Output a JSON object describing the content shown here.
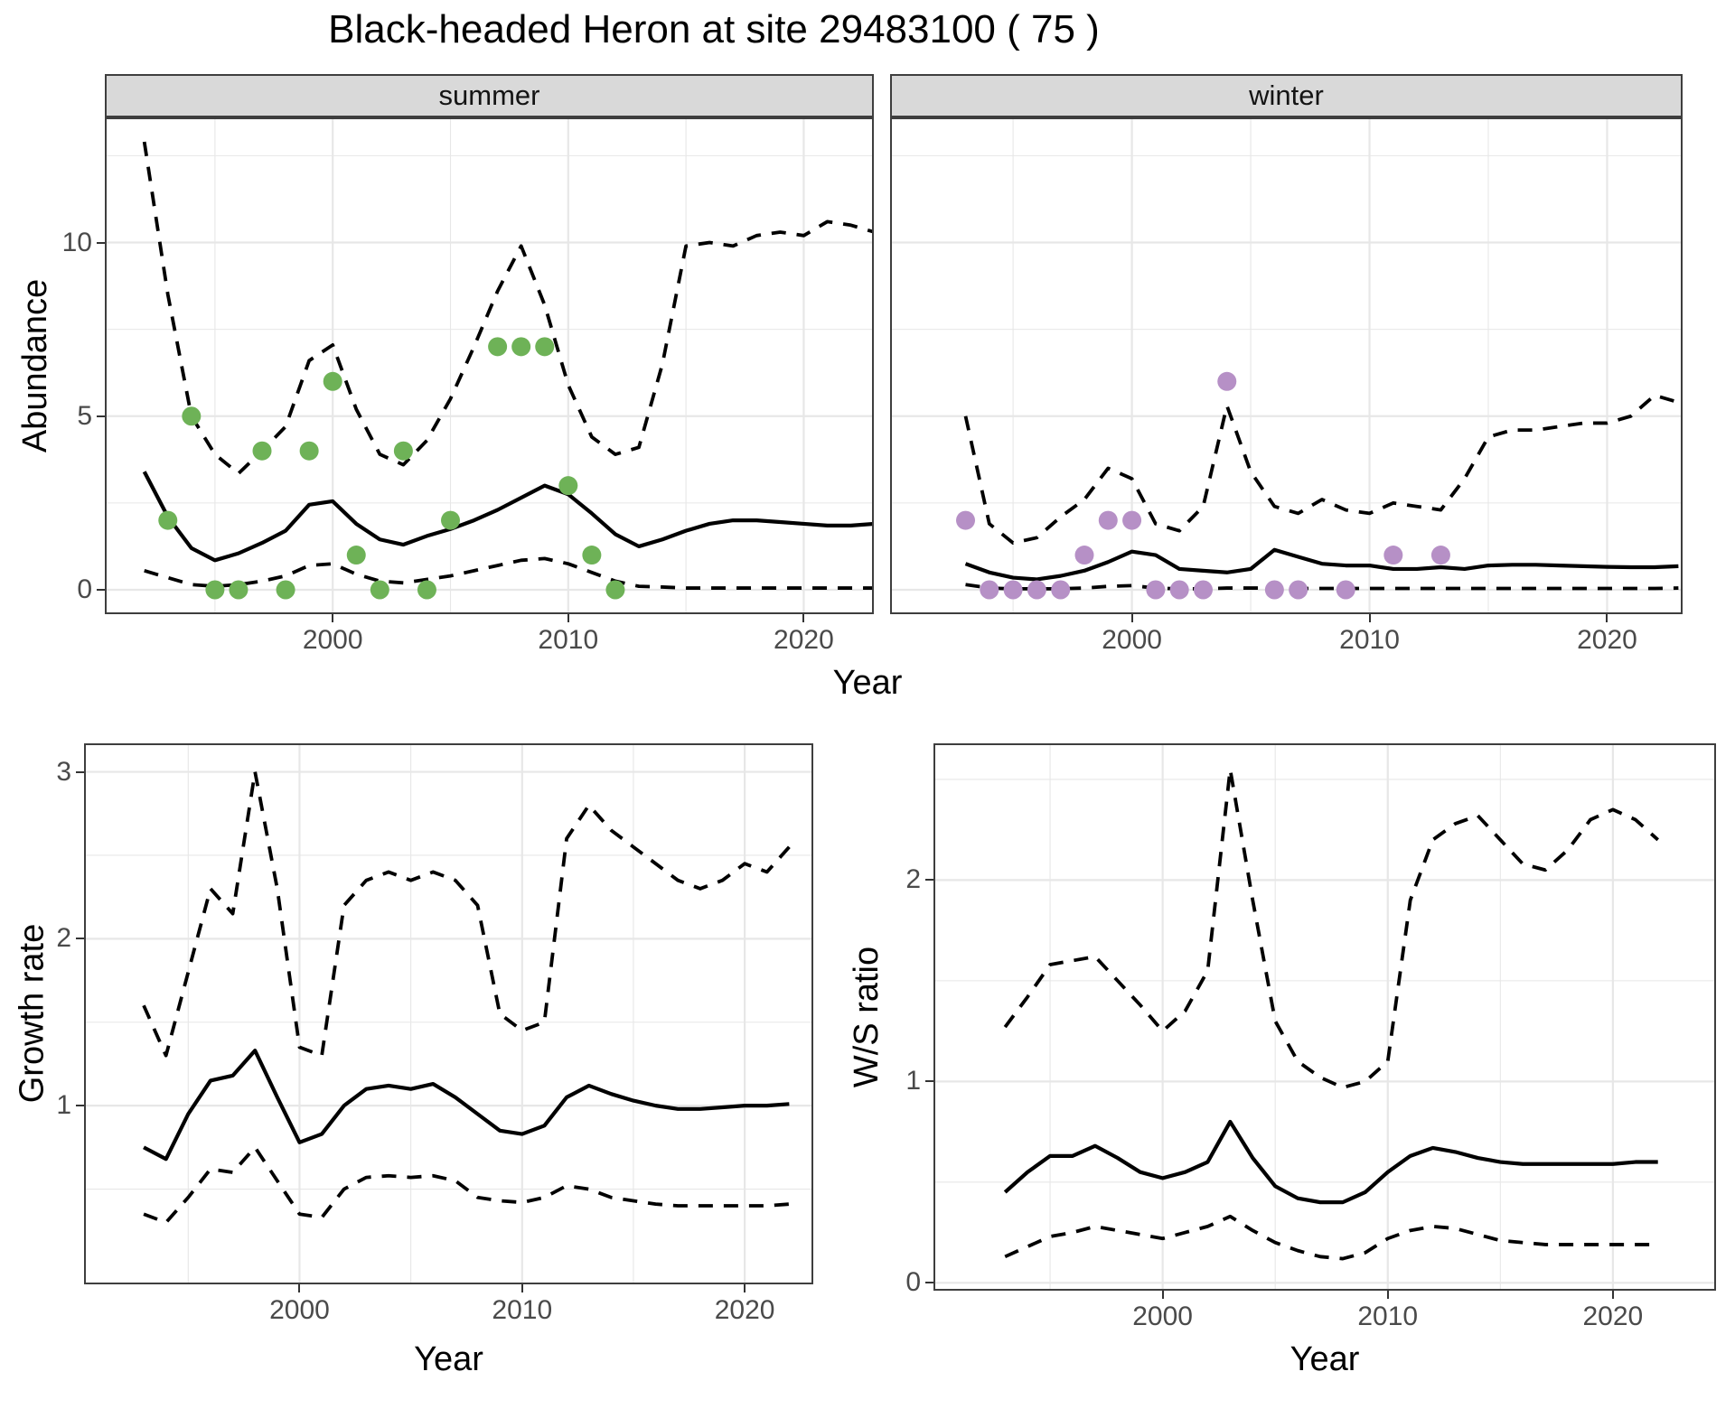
{
  "title": "Black-headed Heron at site 29483100 ( 75 )",
  "top": {
    "ylabel": "Abundance",
    "xlabel": "Year",
    "facets": [
      "summer",
      "winter"
    ]
  },
  "colors": {
    "summer_point": "#6EB257",
    "winter_point": "#B690C6",
    "line": "#000000",
    "grid": "#E7E7E7",
    "strip_bg": "#D9D9D9",
    "tick_label": "#4A4A4A",
    "panel_border": "#3E3E3E"
  },
  "chart_data": [
    {
      "id": "summer_abundance",
      "type": "line",
      "facet_label": "summer",
      "svg_id": "svg-summer",
      "show_y_axis": true,
      "xlim": [
        1990.4,
        2022.9
      ],
      "ylim": [
        -0.65,
        13.55
      ],
      "x_ticks": [
        2000,
        2010,
        2020
      ],
      "x_tick_labels": [
        "2000",
        "2010",
        "2020"
      ],
      "x_minor": [
        1995,
        2005,
        2015
      ],
      "y_ticks": [
        0,
        5,
        10
      ],
      "y_tick_labels": [
        "0",
        "5",
        "10"
      ],
      "y_minor": [
        2.5,
        7.5,
        12.5
      ],
      "years": [
        1992,
        1993,
        1994,
        1995,
        1996,
        1997,
        1998,
        1999,
        2000,
        2001,
        2002,
        2003,
        2004,
        2005,
        2006,
        2007,
        2008,
        2009,
        2010,
        2011,
        2012,
        2013,
        2014,
        2015,
        2016,
        2017,
        2018,
        2019,
        2020,
        2021,
        2022,
        2023
      ],
      "series": [
        {
          "name": "upper_ci",
          "style": "dashed",
          "values": [
            12.9,
            8.5,
            5.0,
            3.9,
            3.35,
            4.0,
            4.7,
            6.6,
            7.05,
            5.2,
            3.9,
            3.6,
            4.3,
            5.5,
            7.0,
            8.6,
            9.9,
            8.2,
            5.9,
            4.4,
            3.9,
            4.1,
            6.5,
            9.9,
            10.0,
            9.9,
            10.2,
            10.3,
            10.2,
            10.6,
            10.5,
            10.3
          ]
        },
        {
          "name": "mean",
          "style": "solid",
          "values": [
            3.4,
            2.1,
            1.2,
            0.85,
            1.05,
            1.35,
            1.7,
            2.45,
            2.55,
            1.9,
            1.45,
            1.3,
            1.55,
            1.75,
            2.0,
            2.3,
            2.65,
            3.0,
            2.75,
            2.2,
            1.6,
            1.25,
            1.45,
            1.7,
            1.9,
            2.0,
            2.0,
            1.95,
            1.9,
            1.85,
            1.85,
            1.9
          ]
        },
        {
          "name": "lower_ci",
          "style": "dashed",
          "values": [
            0.55,
            0.35,
            0.15,
            0.1,
            0.15,
            0.25,
            0.4,
            0.7,
            0.75,
            0.45,
            0.25,
            0.2,
            0.3,
            0.4,
            0.55,
            0.7,
            0.85,
            0.9,
            0.75,
            0.5,
            0.25,
            0.1,
            0.08,
            0.05,
            0.05,
            0.05,
            0.05,
            0.05,
            0.05,
            0.05,
            0.05,
            0.05
          ]
        }
      ],
      "points": {
        "name": "observed_counts",
        "color": "#6EB257",
        "data": [
          [
            1993,
            2
          ],
          [
            1994,
            5
          ],
          [
            1995,
            0
          ],
          [
            1996,
            0
          ],
          [
            1997,
            4
          ],
          [
            1998,
            0
          ],
          [
            1999,
            4
          ],
          [
            2000,
            6
          ],
          [
            2001,
            1
          ],
          [
            2002,
            0
          ],
          [
            2003,
            4
          ],
          [
            2004,
            0
          ],
          [
            2005,
            2
          ],
          [
            2007,
            7
          ],
          [
            2008,
            7
          ],
          [
            2009,
            7
          ],
          [
            2010,
            3
          ],
          [
            2011,
            1
          ],
          [
            2012,
            0
          ]
        ]
      }
    },
    {
      "id": "winter_abundance",
      "type": "line",
      "facet_label": "winter",
      "svg_id": "svg-winter",
      "show_y_axis": false,
      "xlim": [
        1989.9,
        2023.1
      ],
      "ylim": [
        -0.65,
        13.55
      ],
      "x_ticks": [
        2000,
        2010,
        2020
      ],
      "x_tick_labels": [
        "2000",
        "2010",
        "2020"
      ],
      "x_minor": [
        1995,
        2005,
        2015
      ],
      "y_ticks": [
        0,
        5,
        10
      ],
      "y_tick_labels": [
        "0",
        "5",
        "10"
      ],
      "y_minor": [
        2.5,
        7.5,
        12.5
      ],
      "years": [
        1993,
        1994,
        1995,
        1996,
        1997,
        1998,
        1999,
        2000,
        2001,
        2002,
        2003,
        2004,
        2005,
        2006,
        2007,
        2008,
        2009,
        2010,
        2011,
        2012,
        2013,
        2014,
        2015,
        2016,
        2017,
        2018,
        2019,
        2020,
        2021,
        2022,
        2023
      ],
      "series": [
        {
          "name": "upper_ci",
          "style": "dashed",
          "values": [
            5.0,
            1.9,
            1.35,
            1.5,
            2.1,
            2.6,
            3.5,
            3.2,
            1.9,
            1.7,
            2.4,
            5.3,
            3.4,
            2.4,
            2.2,
            2.6,
            2.3,
            2.2,
            2.5,
            2.4,
            2.3,
            3.2,
            4.4,
            4.6,
            4.6,
            4.7,
            4.8,
            4.8,
            5.0,
            5.6,
            5.4
          ]
        },
        {
          "name": "mean",
          "style": "solid",
          "values": [
            0.75,
            0.5,
            0.35,
            0.3,
            0.4,
            0.55,
            0.8,
            1.1,
            1.0,
            0.6,
            0.55,
            0.5,
            0.6,
            1.15,
            0.95,
            0.75,
            0.7,
            0.7,
            0.6,
            0.6,
            0.65,
            0.6,
            0.7,
            0.72,
            0.72,
            0.7,
            0.68,
            0.66,
            0.65,
            0.65,
            0.68
          ]
        },
        {
          "name": "lower_ci",
          "style": "dashed",
          "values": [
            0.15,
            0.05,
            0.03,
            0.03,
            0.03,
            0.05,
            0.1,
            0.12,
            0.05,
            0.03,
            0.03,
            0.05,
            0.05,
            0.05,
            0.04,
            0.04,
            0.04,
            0.04,
            0.04,
            0.04,
            0.04,
            0.04,
            0.04,
            0.04,
            0.04,
            0.04,
            0.04,
            0.04,
            0.04,
            0.04,
            0.05
          ]
        }
      ],
      "points": {
        "name": "observed_counts",
        "color": "#B690C6",
        "data": [
          [
            1993,
            2
          ],
          [
            1994,
            0
          ],
          [
            1995,
            0
          ],
          [
            1996,
            0
          ],
          [
            1997,
            0
          ],
          [
            1998,
            1
          ],
          [
            1999,
            2
          ],
          [
            2000,
            2
          ],
          [
            2001,
            0
          ],
          [
            2002,
            0
          ],
          [
            2003,
            0
          ],
          [
            2004,
            6
          ],
          [
            2006,
            0
          ],
          [
            2007,
            0
          ],
          [
            2009,
            0
          ],
          [
            2011,
            1
          ],
          [
            2013,
            1
          ]
        ]
      }
    },
    {
      "id": "growth_rate",
      "type": "line",
      "ylabel": "Growth rate",
      "xlabel": "Year",
      "svg_id": "svg-growth",
      "show_y_axis": true,
      "xlim": [
        1990.4,
        2023.0
      ],
      "ylim": [
        -0.06,
        3.16
      ],
      "x_ticks": [
        2000,
        2010,
        2020
      ],
      "x_tick_labels": [
        "2000",
        "2010",
        "2020"
      ],
      "x_minor": [
        1995,
        2005,
        2015
      ],
      "y_ticks": [
        1,
        2,
        3
      ],
      "y_tick_labels": [
        "1",
        "2",
        "3"
      ],
      "y_minor": [
        0.5,
        1.5,
        2.5
      ],
      "years": [
        1993,
        1994,
        1995,
        1996,
        1997,
        1998,
        1999,
        2000,
        2001,
        2002,
        2003,
        2004,
        2005,
        2006,
        2007,
        2008,
        2009,
        2010,
        2011,
        2012,
        2013,
        2014,
        2015,
        2016,
        2017,
        2018,
        2019,
        2020,
        2021,
        2022
      ],
      "series": [
        {
          "name": "upper_ci",
          "style": "dashed",
          "values": [
            1.6,
            1.3,
            1.8,
            2.3,
            2.15,
            3.0,
            2.3,
            1.35,
            1.3,
            2.2,
            2.35,
            2.4,
            2.35,
            2.4,
            2.35,
            2.2,
            1.55,
            1.45,
            1.5,
            2.6,
            2.8,
            2.65,
            2.55,
            2.45,
            2.35,
            2.3,
            2.35,
            2.45,
            2.4,
            2.55
          ]
        },
        {
          "name": "mean",
          "style": "solid",
          "values": [
            0.75,
            0.68,
            0.95,
            1.15,
            1.18,
            1.33,
            1.05,
            0.78,
            0.83,
            1.0,
            1.1,
            1.12,
            1.1,
            1.13,
            1.05,
            0.95,
            0.85,
            0.83,
            0.88,
            1.05,
            1.12,
            1.07,
            1.03,
            1.0,
            0.98,
            0.98,
            0.99,
            1.0,
            1.0,
            1.01
          ]
        },
        {
          "name": "lower_ci",
          "style": "dashed",
          "values": [
            0.35,
            0.3,
            0.45,
            0.62,
            0.6,
            0.75,
            0.55,
            0.35,
            0.33,
            0.5,
            0.57,
            0.58,
            0.57,
            0.58,
            0.55,
            0.45,
            0.43,
            0.42,
            0.45,
            0.52,
            0.5,
            0.45,
            0.43,
            0.41,
            0.4,
            0.4,
            0.4,
            0.4,
            0.4,
            0.41
          ]
        }
      ]
    },
    {
      "id": "ws_ratio",
      "type": "line",
      "ylabel": "W/S ratio",
      "xlabel": "Year",
      "svg_id": "svg-ws",
      "show_y_axis": true,
      "xlim": [
        1989.9,
        2024.5
      ],
      "ylim": [
        -0.03,
        2.67
      ],
      "x_ticks": [
        2000,
        2010,
        2020
      ],
      "x_tick_labels": [
        "2000",
        "2010",
        "2020"
      ],
      "x_minor": [
        1995,
        2005,
        2015
      ],
      "y_ticks": [
        0,
        1,
        2
      ],
      "y_tick_labels": [
        "0",
        "1",
        "2"
      ],
      "y_minor": [
        0.5,
        1.5,
        2.5
      ],
      "years": [
        1993,
        1994,
        1995,
        1996,
        1997,
        1998,
        1999,
        2000,
        2001,
        2002,
        2003,
        2004,
        2005,
        2006,
        2007,
        2008,
        2009,
        2010,
        2011,
        2012,
        2013,
        2014,
        2015,
        2016,
        2017,
        2018,
        2019,
        2020,
        2021,
        2022
      ],
      "series": [
        {
          "name": "upper_ci",
          "style": "dashed",
          "values": [
            1.27,
            1.42,
            1.58,
            1.6,
            1.62,
            1.5,
            1.38,
            1.25,
            1.35,
            1.55,
            2.55,
            1.9,
            1.3,
            1.1,
            1.02,
            0.97,
            1.0,
            1.1,
            1.9,
            2.2,
            2.28,
            2.32,
            2.2,
            2.08,
            2.05,
            2.15,
            2.3,
            2.35,
            2.3,
            2.2
          ]
        },
        {
          "name": "mean",
          "style": "solid",
          "values": [
            0.45,
            0.55,
            0.63,
            0.63,
            0.68,
            0.62,
            0.55,
            0.52,
            0.55,
            0.6,
            0.8,
            0.62,
            0.48,
            0.42,
            0.4,
            0.4,
            0.45,
            0.55,
            0.63,
            0.67,
            0.65,
            0.62,
            0.6,
            0.59,
            0.59,
            0.59,
            0.59,
            0.59,
            0.6,
            0.6
          ]
        },
        {
          "name": "lower_ci",
          "style": "dashed",
          "values": [
            0.13,
            0.18,
            0.23,
            0.25,
            0.28,
            0.26,
            0.24,
            0.22,
            0.25,
            0.28,
            0.33,
            0.26,
            0.2,
            0.16,
            0.13,
            0.12,
            0.15,
            0.22,
            0.26,
            0.28,
            0.27,
            0.24,
            0.21,
            0.2,
            0.19,
            0.19,
            0.19,
            0.19,
            0.19,
            0.19
          ]
        }
      ]
    }
  ]
}
